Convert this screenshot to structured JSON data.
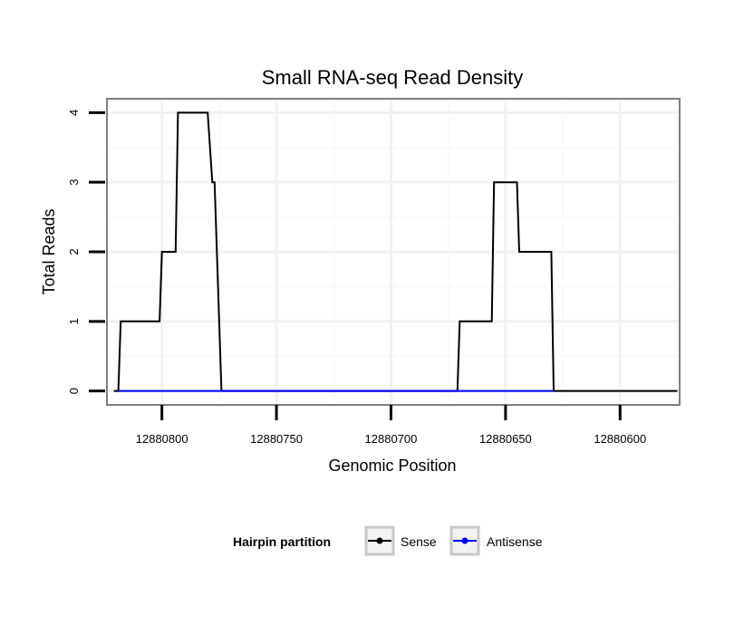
{
  "chart_data": {
    "type": "line",
    "title": "Small RNA-seq Read Density",
    "xlabel": "Genomic Position",
    "ylabel": "Total Reads",
    "x_reversed": true,
    "xlim": [
      12880824,
      12880574
    ],
    "ylim": [
      -0.2,
      4.2
    ],
    "x_ticks": [
      12880800,
      12880750,
      12880700,
      12880650,
      12880600
    ],
    "y_ticks": [
      0,
      1,
      2,
      3,
      4
    ],
    "grid": true,
    "legend": {
      "title": "Hairpin partition",
      "position": "bottom"
    },
    "series": [
      {
        "name": "Sense",
        "color": "#000000",
        "x": [
          12880821,
          12880819,
          12880818,
          12880801,
          12880800,
          12880794,
          12880793,
          12880780,
          12880778,
          12880777,
          12880774,
          12880773,
          12880671,
          12880670,
          12880656,
          12880655,
          12880652,
          12880645,
          12880644,
          12880642,
          12880630,
          12880629,
          12880626,
          12880575
        ],
        "y": [
          0,
          0,
          1,
          1,
          2,
          2,
          4,
          4,
          3,
          3,
          0,
          0,
          0,
          1,
          1,
          3,
          3,
          3,
          2,
          2,
          2,
          0,
          0,
          0
        ]
      },
      {
        "name": "Antisense",
        "color": "#0000ff",
        "x": [
          12880819,
          12880773,
          12880671,
          12880629
        ],
        "y": [
          0,
          0,
          0,
          0
        ]
      }
    ]
  }
}
